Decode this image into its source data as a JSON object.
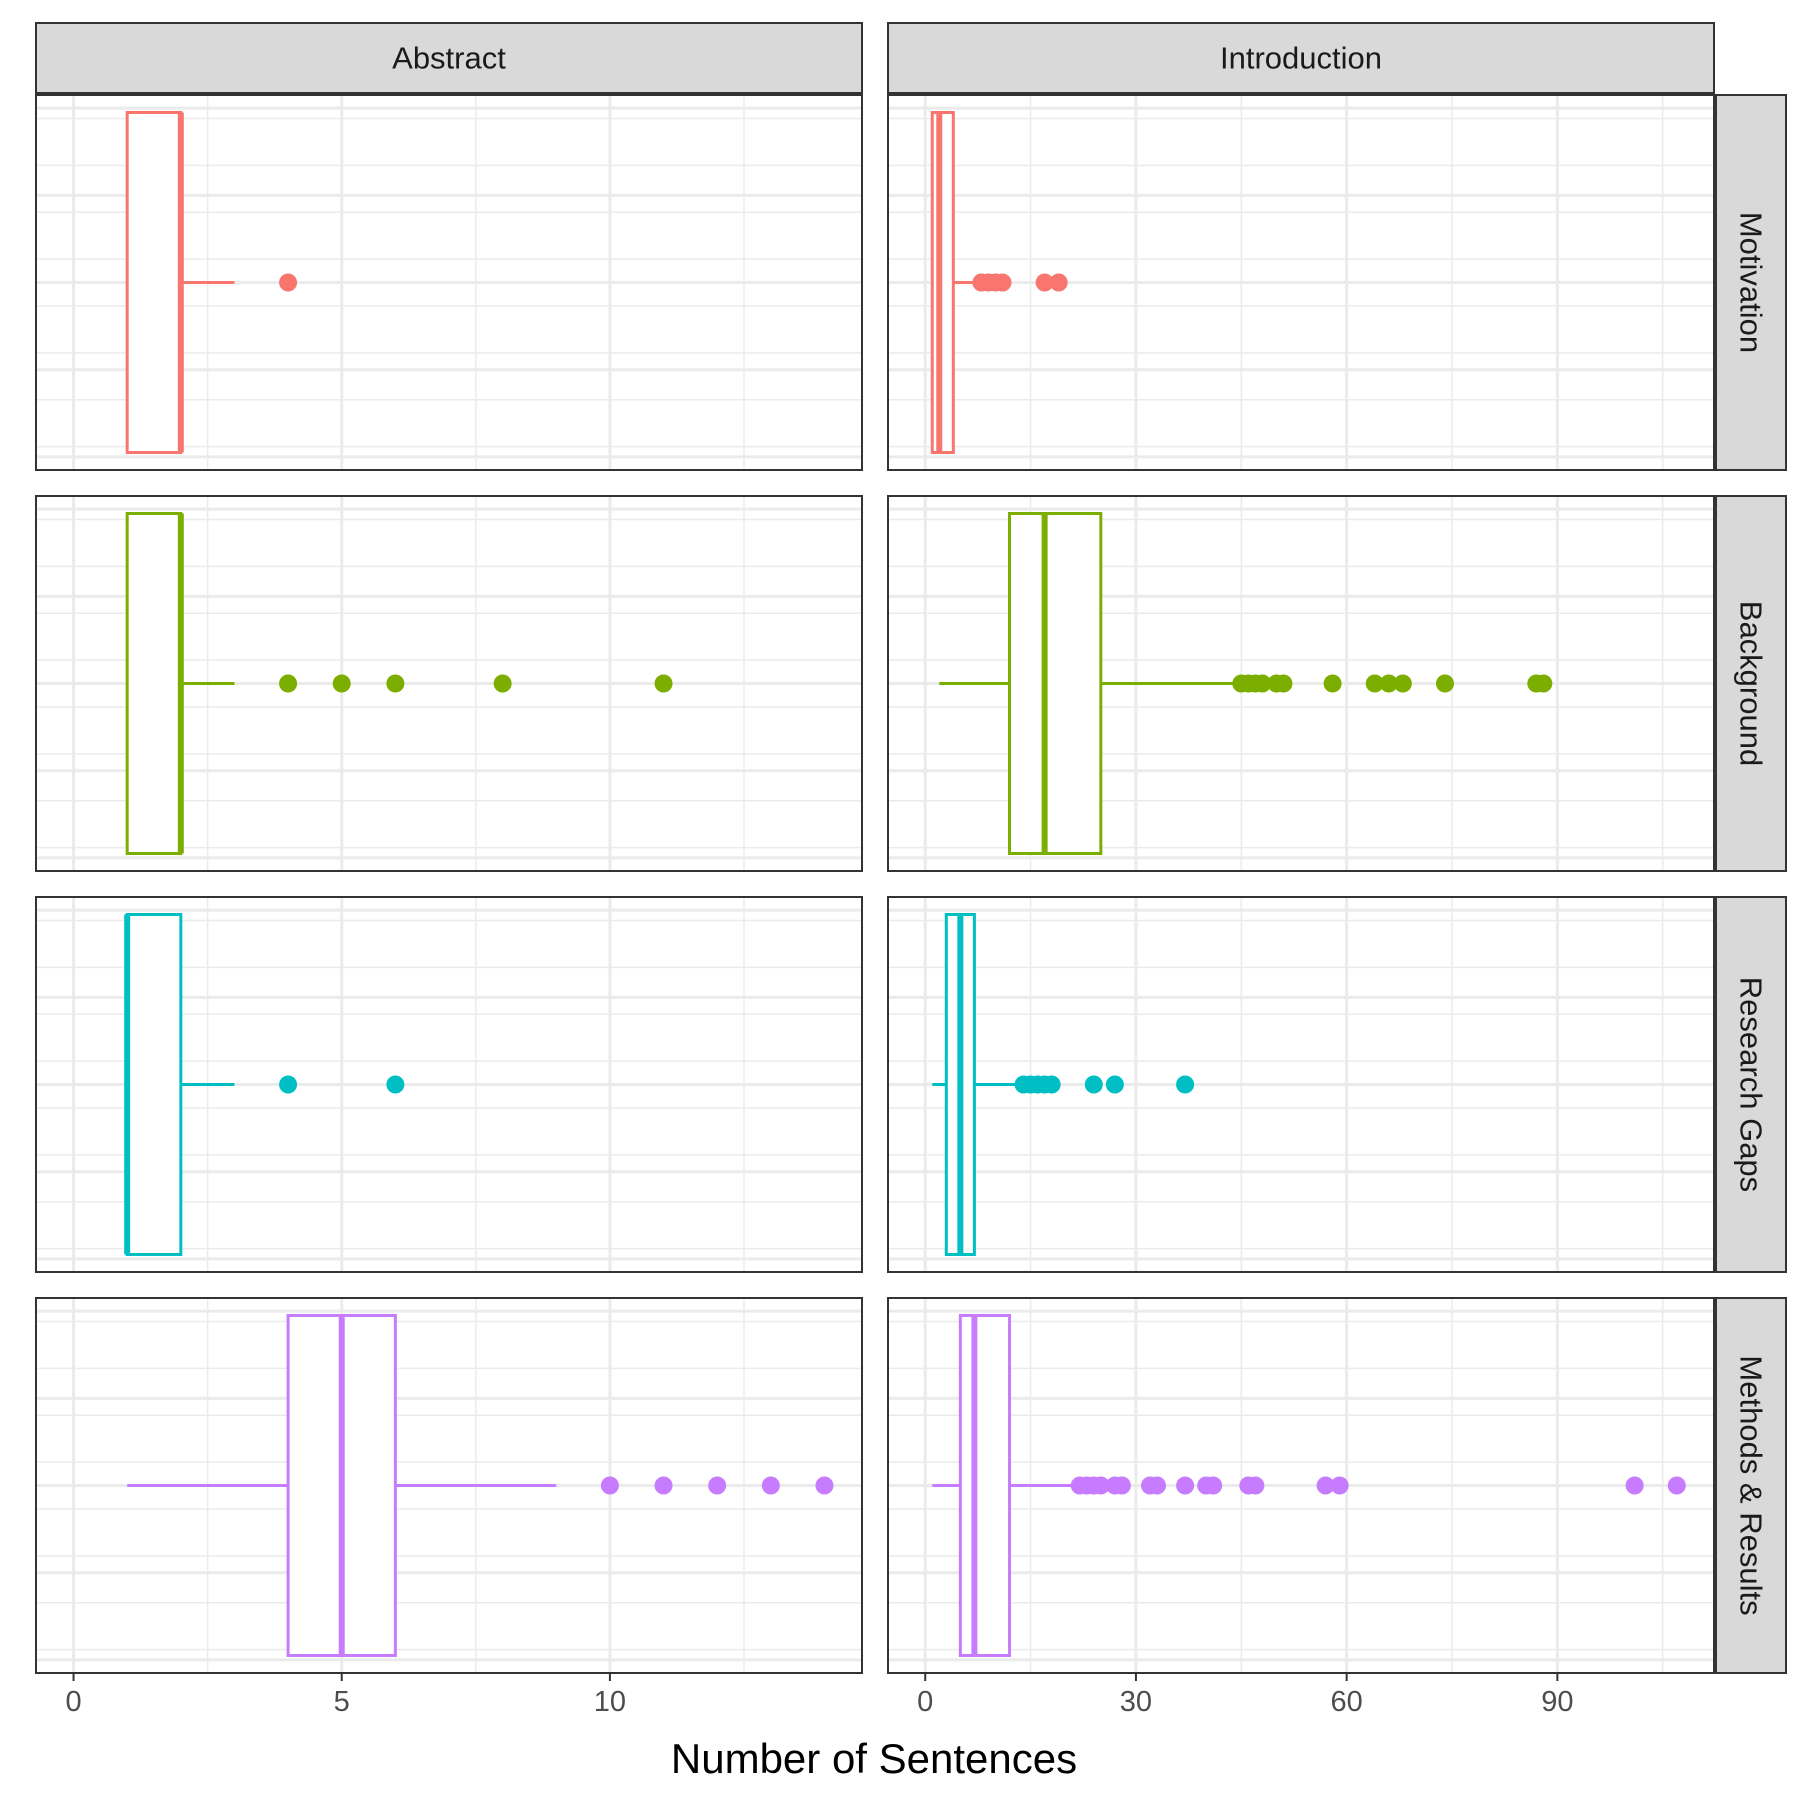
{
  "chart_data": {
    "type": "boxplot",
    "xlabel": "Number of Sentences",
    "columns": [
      {
        "name": "Abstract",
        "xlim": [
          -0.7,
          14.7
        ],
        "ticks": [
          0,
          5,
          10
        ],
        "tick_labels": [
          "0",
          "5",
          "10"
        ]
      },
      {
        "name": "Introduction",
        "xlim": [
          -5.3,
          112.3
        ],
        "ticks": [
          0,
          30,
          60,
          90
        ],
        "tick_labels": [
          "0",
          "30",
          "60",
          "90"
        ]
      }
    ],
    "rows": [
      {
        "name": "Motivation",
        "color": "#F8766D"
      },
      {
        "name": "Background",
        "color": "#7CAE00"
      },
      {
        "name": "Research Gaps",
        "color": "#00BFC4"
      },
      {
        "name": "Methods & Results",
        "color": "#C77CFF"
      }
    ],
    "panels": [
      {
        "row": "Motivation",
        "column": "Abstract",
        "q1": 1,
        "median": 2,
        "q3": 2,
        "whisker_low": 1,
        "whisker_high": 3,
        "outliers": [
          4
        ]
      },
      {
        "row": "Motivation",
        "column": "Introduction",
        "q1": 1,
        "median": 2,
        "q3": 4,
        "whisker_low": 1,
        "whisker_high": 7,
        "outliers": [
          8,
          9,
          10,
          11,
          17,
          19
        ]
      },
      {
        "row": "Background",
        "column": "Abstract",
        "q1": 1,
        "median": 2,
        "q3": 2,
        "whisker_low": 1,
        "whisker_high": 3,
        "outliers": [
          4,
          5,
          6,
          8,
          11
        ]
      },
      {
        "row": "Background",
        "column": "Introduction",
        "q1": 12,
        "median": 17,
        "q3": 25,
        "whisker_low": 2,
        "whisker_high": 44,
        "outliers": [
          45,
          46,
          47,
          48,
          50,
          51,
          58,
          64,
          66,
          68,
          74,
          87,
          88
        ]
      },
      {
        "row": "Research Gaps",
        "column": "Abstract",
        "q1": 1,
        "median": 1,
        "q3": 2,
        "whisker_low": 1,
        "whisker_high": 3,
        "outliers": [
          4,
          6
        ]
      },
      {
        "row": "Research Gaps",
        "column": "Introduction",
        "q1": 3,
        "median": 5,
        "q3": 7,
        "whisker_low": 1,
        "whisker_high": 13,
        "outliers": [
          14,
          15,
          16,
          17,
          18,
          24,
          27,
          37
        ]
      },
      {
        "row": "Methods & Results",
        "column": "Abstract",
        "q1": 4,
        "median": 5,
        "q3": 6,
        "whisker_low": 1,
        "whisker_high": 9,
        "outliers": [
          10,
          11,
          12,
          13,
          14
        ]
      },
      {
        "row": "Methods & Results",
        "column": "Introduction",
        "q1": 5,
        "median": 7,
        "q3": 12,
        "whisker_low": 1,
        "whisker_high": 21,
        "outliers": [
          22,
          23,
          24,
          25,
          27,
          28,
          32,
          33,
          37,
          40,
          41,
          46,
          47,
          57,
          59,
          101,
          107
        ]
      }
    ]
  }
}
